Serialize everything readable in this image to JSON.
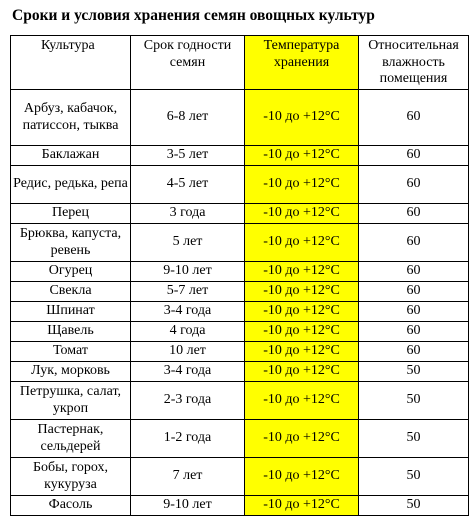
{
  "title": "Сроки и условия хранения семян овощных культур",
  "table": {
    "headers": [
      "Культура",
      "Срок годности семян",
      "Температура хранения",
      "Относительная влажность помещения"
    ],
    "rows": [
      [
        "Арбуз, кабачок, патиссон, тыква",
        "6-8 лет",
        "-10 до +12°С",
        "60"
      ],
      [
        "Баклажан",
        "3-5 лет",
        "-10 до +12°С",
        "60"
      ],
      [
        "Редис, редька, репа",
        "4-5 лет",
        "-10 до +12°С",
        "60"
      ],
      [
        "Перец",
        "3 года",
        "-10 до +12°С",
        "60"
      ],
      [
        "Брюква, капуста, ревень",
        "5 лет",
        "-10 до +12°С",
        "60"
      ],
      [
        "Огурец",
        "9-10 лет",
        "-10 до +12°С",
        "60"
      ],
      [
        "Свекла",
        "5-7 лет",
        "-10 до +12°С",
        "60"
      ],
      [
        "Шпинат",
        "3-4 года",
        "-10 до +12°С",
        "60"
      ],
      [
        "Щавель",
        "4 года",
        "-10 до +12°С",
        "60"
      ],
      [
        "Томат",
        "10 лет",
        "-10 до +12°С",
        "60"
      ],
      [
        "Лук, морковь",
        "3-4 года",
        "-10 до +12°С",
        "50"
      ],
      [
        "Петрушка, салат, укроп",
        "2-3 года",
        "-10 до +12°С",
        "50"
      ],
      [
        "Пастернак, сельдерей",
        "1-2 года",
        "-10 до +12°С",
        "50"
      ],
      [
        "Бобы, горох, кукуруза",
        "7 лет",
        "-10 до +12°С",
        "50"
      ],
      [
        "Фасоль",
        "9-10 лет",
        "-10 до +12°С",
        "50"
      ]
    ]
  }
}
